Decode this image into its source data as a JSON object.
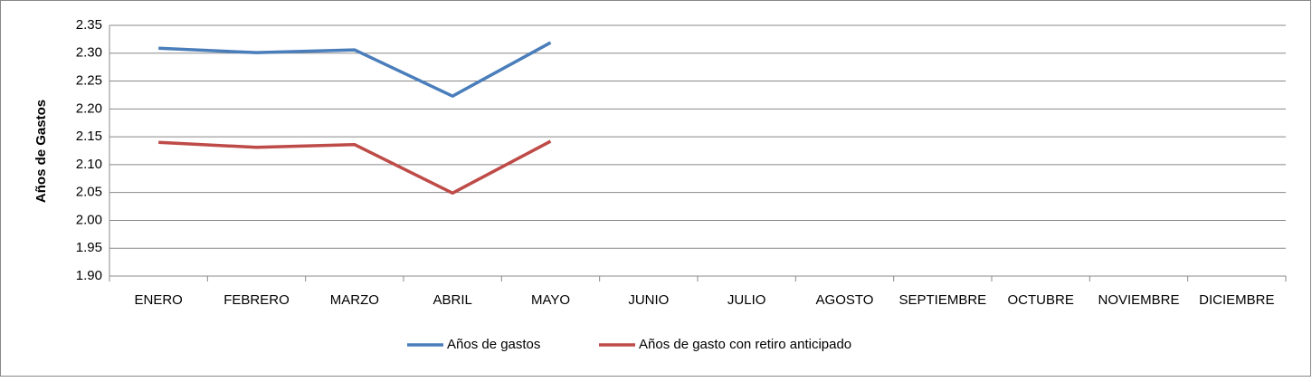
{
  "chart_data": {
    "type": "line",
    "ylabel": "Años de Gastos",
    "categories": [
      "ENERO",
      "FEBRERO",
      "MARZO",
      "ABRIL",
      "MAYO",
      "JUNIO",
      "JULIO",
      "AGOSTO",
      "SEPTIEMBRE",
      "OCTUBRE",
      "NOVIEMBRE",
      "DICIEMBRE"
    ],
    "series": [
      {
        "name": "Años de gastos",
        "color": "#4a7ebb",
        "values": [
          2.309,
          2.301,
          2.306,
          2.223,
          2.319,
          null,
          null,
          null,
          null,
          null,
          null,
          null
        ]
      },
      {
        "name": "Años de gasto con retiro anticipado",
        "color": "#be4b48",
        "values": [
          2.14,
          2.131,
          2.136,
          2.049,
          2.142,
          null,
          null,
          null,
          null,
          null,
          null,
          null
        ]
      }
    ],
    "ylim": [
      1.9,
      2.35
    ],
    "yticks": [
      {
        "value": 1.9,
        "label": "1.90"
      },
      1.95,
      {
        "value": 2.0,
        "label": "2.00"
      },
      2.05,
      {
        "value": 2.1,
        "label": "2.10"
      },
      2.15,
      {
        "value": 2.2,
        "label": "2.20"
      },
      2.25,
      {
        "value": 2.3,
        "label": "2.30"
      },
      2.35
    ],
    "grid": true,
    "legend": "bottom"
  }
}
